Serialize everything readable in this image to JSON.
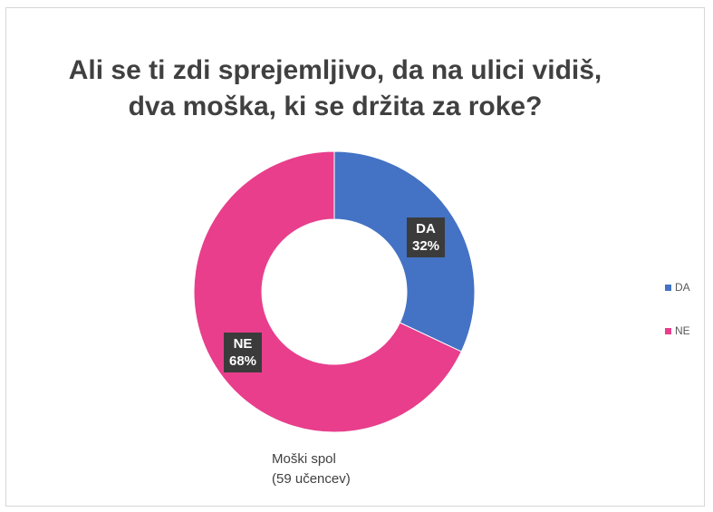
{
  "title_lines": [
    "Ali se ti zdi sprejemljivo, da na ulici vidiš,",
    "dva moška, ki se držita za roke?"
  ],
  "subtitle_lines": [
    "Moški spol",
    "(59 učencev)"
  ],
  "chart_data": {
    "type": "pie",
    "donut": true,
    "categories": [
      "DA",
      "NE"
    ],
    "values": [
      32,
      68
    ],
    "data_labels": [
      {
        "category": "DA",
        "percent": "32%"
      },
      {
        "category": "NE",
        "percent": "68%"
      }
    ],
    "colors": [
      "#4472c4",
      "#e83e8c"
    ],
    "legend_position": "right"
  }
}
